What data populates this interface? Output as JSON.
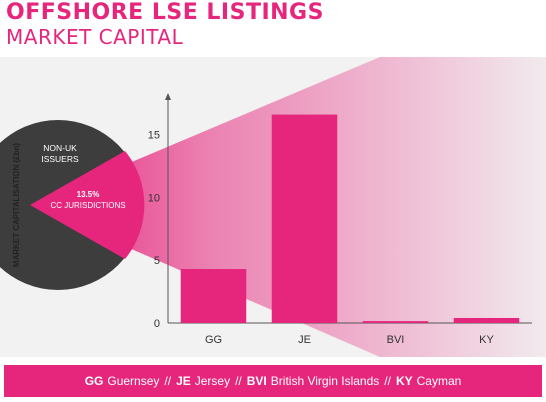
{
  "header": {
    "title": "OFFSHORE LSE LISTINGS",
    "subtitle": "MARKET CAPITAL"
  },
  "colors": {
    "accent": "#e6267d",
    "dark": "#3d3d3d",
    "panel": "#f2f2f2",
    "text": "#333333"
  },
  "pie": {
    "segment_large": "NON-UK ISSUERS",
    "segment_small_value": "13.5%",
    "segment_small_label": "CC JURISDICTIONS"
  },
  "chart_data": {
    "type": "bar",
    "categories": [
      "GG",
      "JE",
      "BVI",
      "KY"
    ],
    "values": [
      4.3,
      16.6,
      0.15,
      0.4
    ],
    "ylabel": "MARKET CAPITALISATION (£bn)",
    "yticks": [
      0,
      5,
      10,
      15
    ],
    "ylim": [
      0,
      18
    ],
    "grid": false,
    "bar_color": "#e6267d"
  },
  "footer": {
    "items": [
      {
        "code": "GG",
        "name": "Guernsey"
      },
      {
        "code": "JE",
        "name": "Jersey"
      },
      {
        "code": "BVI",
        "name": "British Virgin Islands"
      },
      {
        "code": "KY",
        "name": "Cayman"
      }
    ],
    "separator": "//"
  }
}
